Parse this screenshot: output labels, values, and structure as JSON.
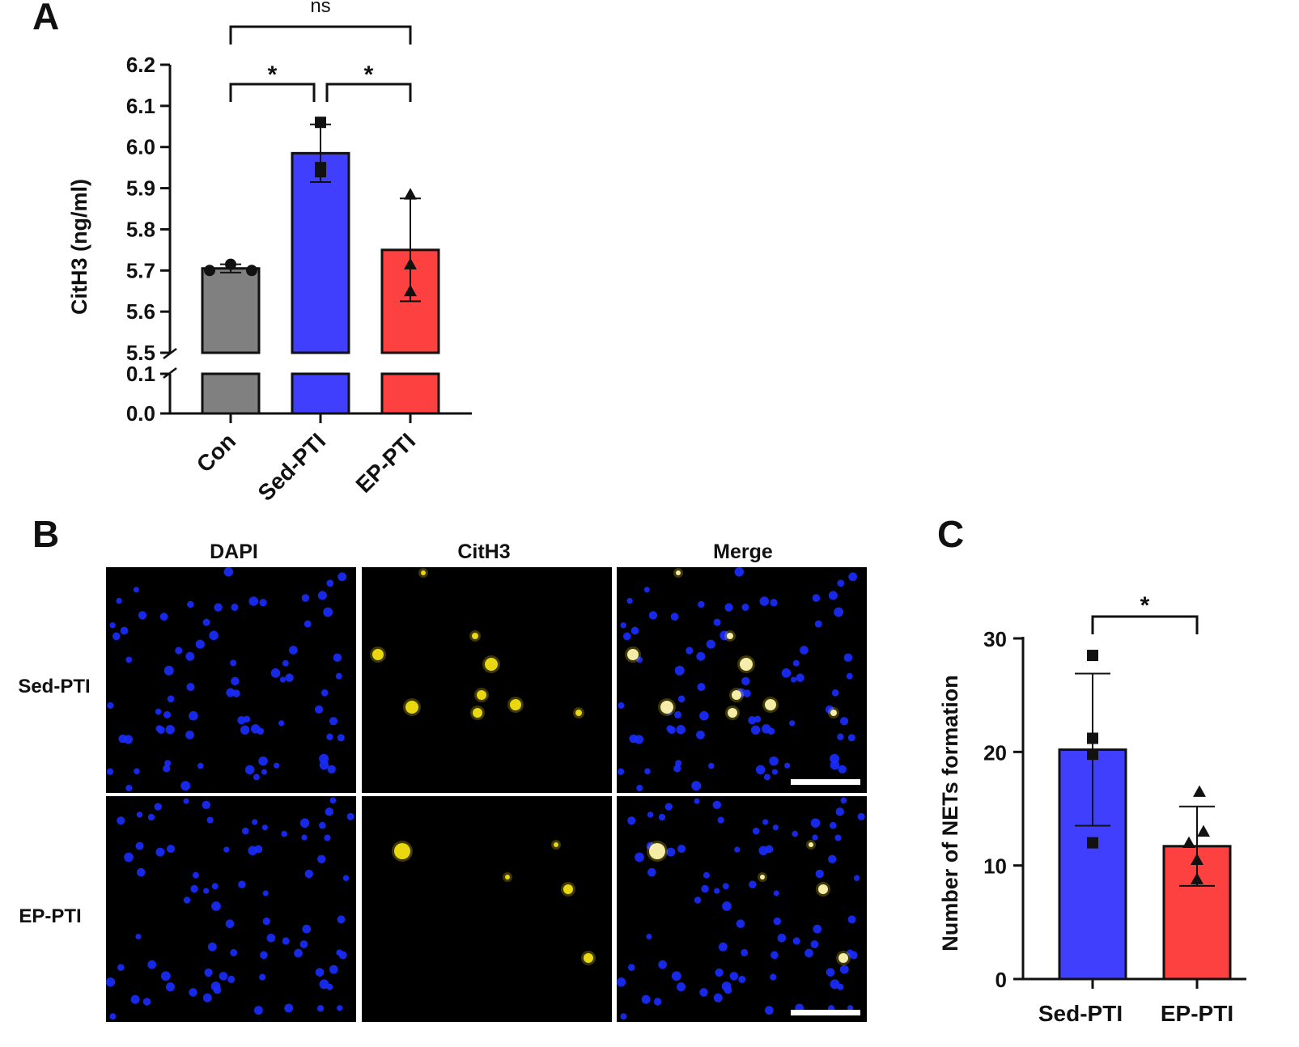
{
  "panels": {
    "a": "A",
    "b": "B",
    "c": "C"
  },
  "colors": {
    "Con": "#808080",
    "Sed-PTI": "#3f3ffd",
    "EP-PTI": "#fd4040",
    "axis": "#111111",
    "dapi": "#1a2cff",
    "cith3": "#f2e012"
  },
  "chart_data": [
    {
      "type": "bar",
      "panel": "A",
      "categories": [
        "Con",
        "Sed-PTI",
        "EP-PTI"
      ],
      "values": [
        5.705,
        5.985,
        5.75
      ],
      "error_sd": [
        0.01,
        0.07,
        0.125
      ],
      "points": [
        [
          5.7,
          5.715,
          5.7
        ],
        [
          6.06,
          5.94,
          5.95
        ],
        [
          5.885,
          5.715,
          5.65
        ]
      ],
      "markers": [
        "circle",
        "square",
        "triangle"
      ],
      "ylabel": "CitH3 (ng/ml)",
      "ylim_upper": [
        5.5,
        6.2
      ],
      "ylim_lower": [
        0.0,
        0.1
      ],
      "yticks_upper": [
        "5.5",
        "5.6",
        "5.7",
        "5.8",
        "5.9",
        "6.0",
        "6.1",
        "6.2"
      ],
      "yticks_lower": [
        "0.0",
        "0.1"
      ],
      "axis_break": true,
      "comparisons": [
        {
          "from": "Con",
          "to": "Sed-PTI",
          "label": "*"
        },
        {
          "from": "Sed-PTI",
          "to": "EP-PTI",
          "label": "*"
        },
        {
          "from": "Con",
          "to": "EP-PTI",
          "label": "ns"
        }
      ]
    },
    {
      "type": "bar",
      "panel": "C",
      "categories": [
        "Sed-PTI",
        "EP-PTI"
      ],
      "values": [
        20.2,
        11.7
      ],
      "error_sd": [
        6.7,
        3.5
      ],
      "points": [
        [
          28.5,
          21.2,
          19.8,
          12.0
        ],
        [
          16.5,
          13.0,
          12.0,
          10.5,
          8.8
        ]
      ],
      "markers": [
        "square",
        "triangle"
      ],
      "ylabel": "Number of NETs formation",
      "ylim": [
        0,
        30
      ],
      "yticks": [
        "0",
        "10",
        "20",
        "30"
      ],
      "comparisons": [
        {
          "from": "Sed-PTI",
          "to": "EP-PTI",
          "label": "*"
        }
      ]
    }
  ],
  "micrographs": {
    "columns": [
      "DAPI",
      "CitH3",
      "Merge"
    ],
    "rows": [
      "Sed-PTI",
      "EP-PTI"
    ]
  }
}
